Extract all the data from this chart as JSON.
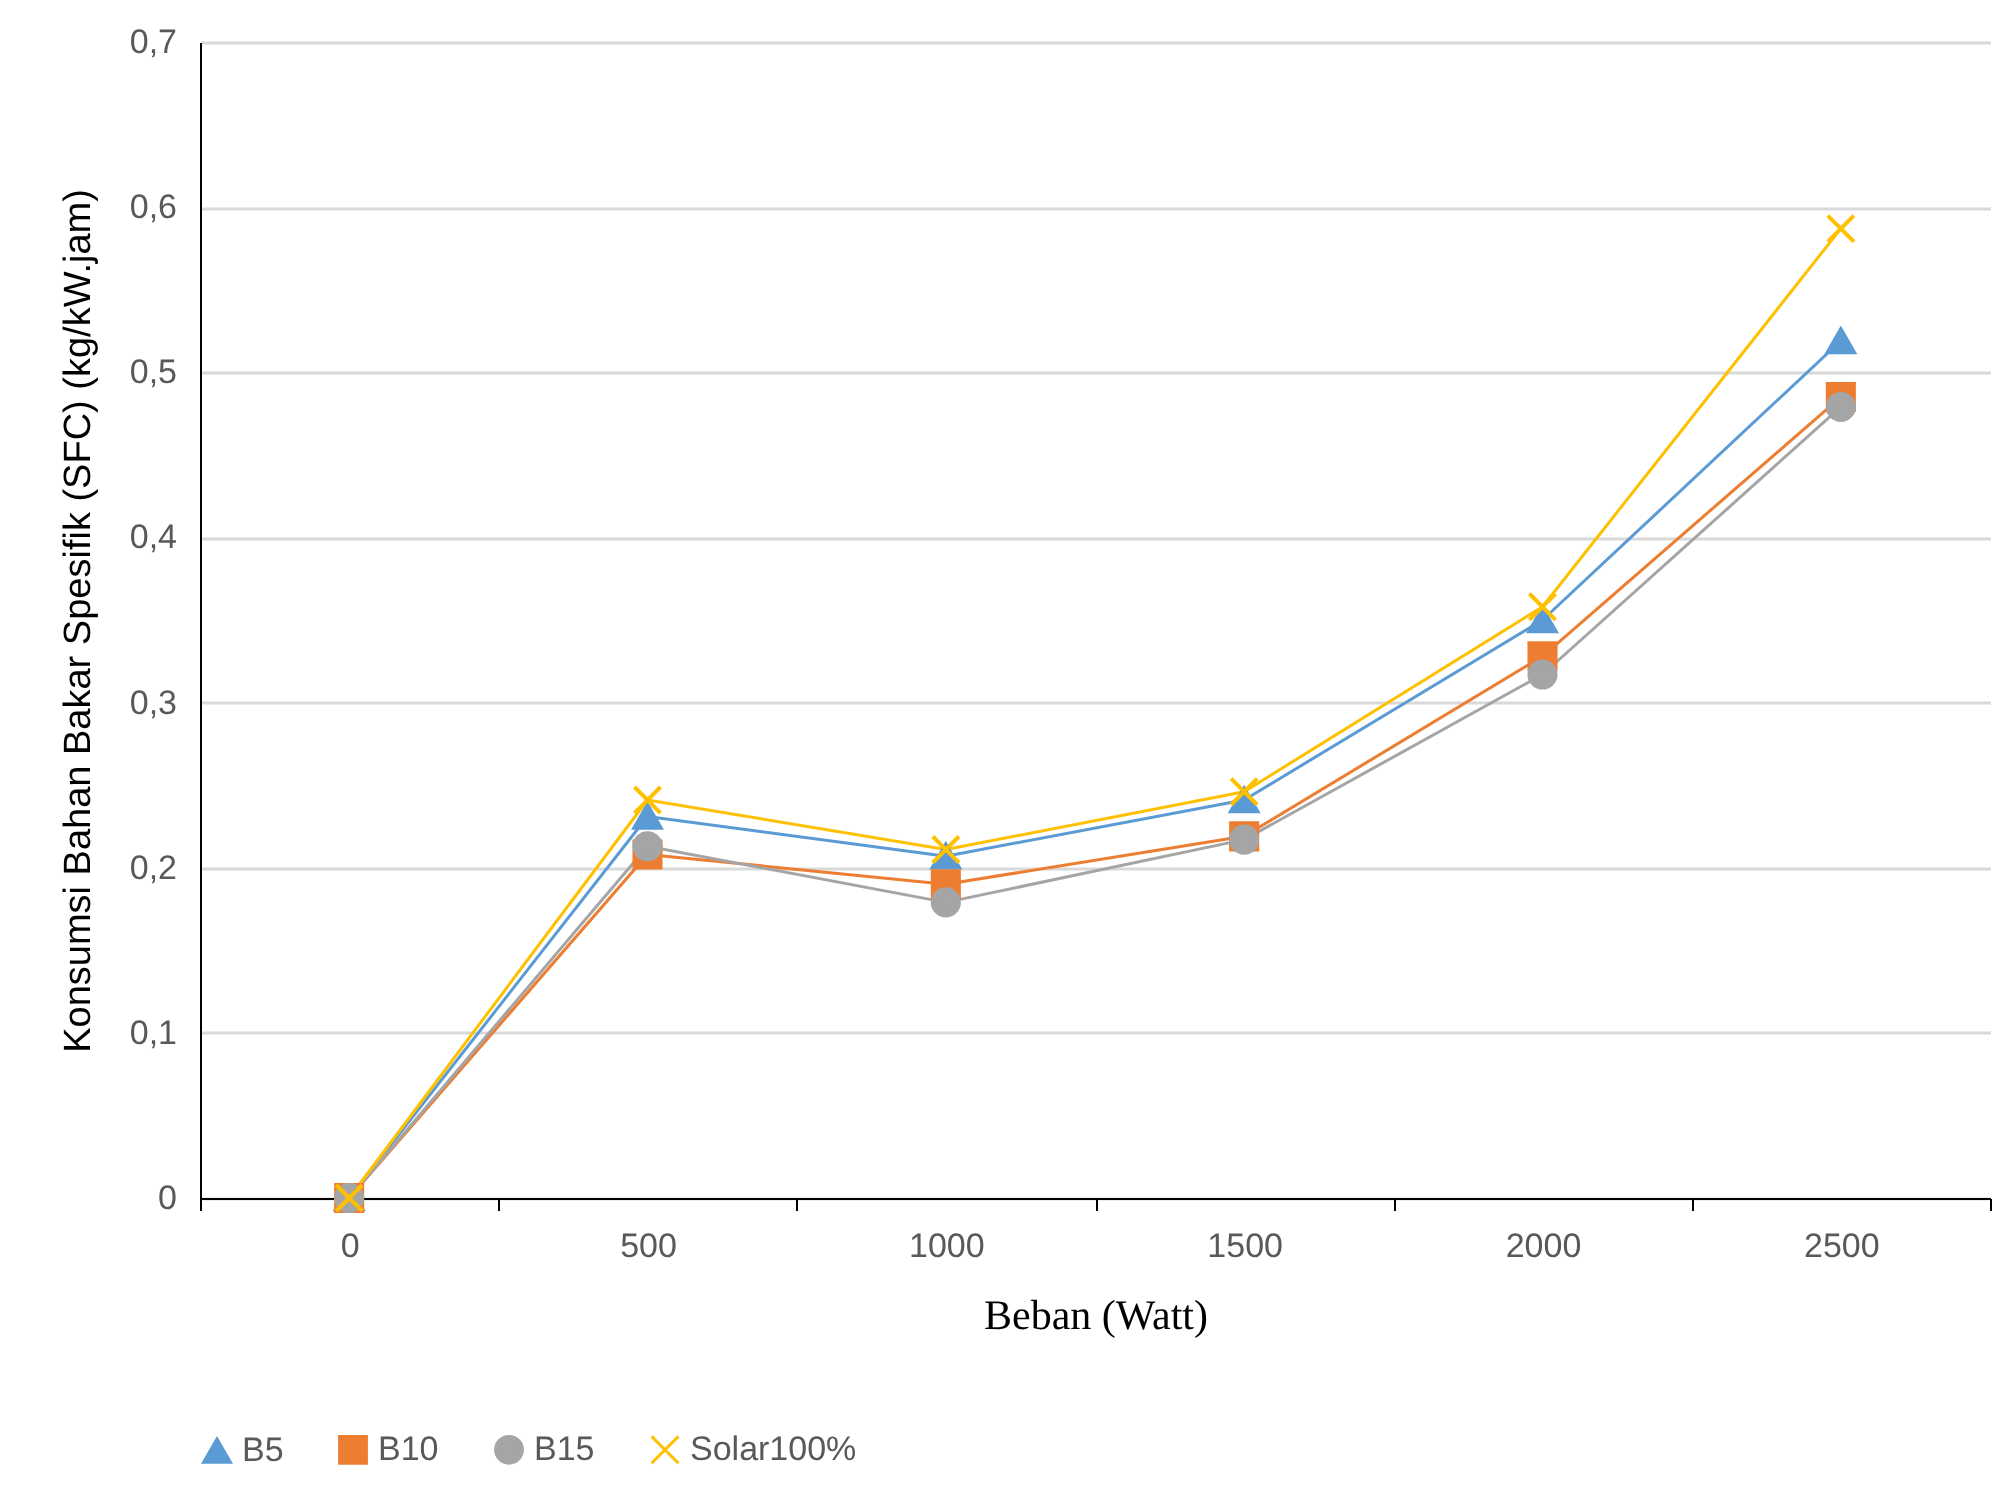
{
  "chart_data": {
    "type": "line",
    "xlabel": "Beban (Watt)",
    "ylabel": "Konsumsi Bahan Bakar Spesifik (SFC) (kg/kW.jam)",
    "categories": [
      "0",
      "500",
      "1000",
      "1500",
      "2000",
      "2500"
    ],
    "ylim": [
      0,
      0.7
    ],
    "yticks": [
      {
        "value": 0,
        "label": "0"
      },
      {
        "value": 0.1,
        "label": "0,1"
      },
      {
        "value": 0.2,
        "label": "0,2"
      },
      {
        "value": 0.3,
        "label": "0,3"
      },
      {
        "value": 0.4,
        "label": "0,4"
      },
      {
        "value": 0.5,
        "label": "0,5"
      },
      {
        "value": 0.6,
        "label": "0,6"
      },
      {
        "value": 0.7,
        "label": "0,7"
      }
    ],
    "grid": "y",
    "legend": "bottom",
    "series": [
      {
        "name": "B5",
        "color": "#5b9bd5",
        "marker": "triangle",
        "values": [
          0,
          0.231,
          0.207,
          0.241,
          0.35,
          0.519
        ]
      },
      {
        "name": "B10",
        "color": "#ed7d31",
        "marker": "square",
        "values": [
          0,
          0.208,
          0.19,
          0.219,
          0.328,
          0.485
        ]
      },
      {
        "name": "B15",
        "color": "#a5a5a5",
        "marker": "circle",
        "values": [
          0,
          0.213,
          0.179,
          0.217,
          0.317,
          0.479
        ]
      },
      {
        "name": "Solar100%",
        "color": "#ffc000",
        "marker": "cross",
        "values": [
          0,
          0.241,
          0.211,
          0.246,
          0.358,
          0.587
        ]
      }
    ]
  }
}
